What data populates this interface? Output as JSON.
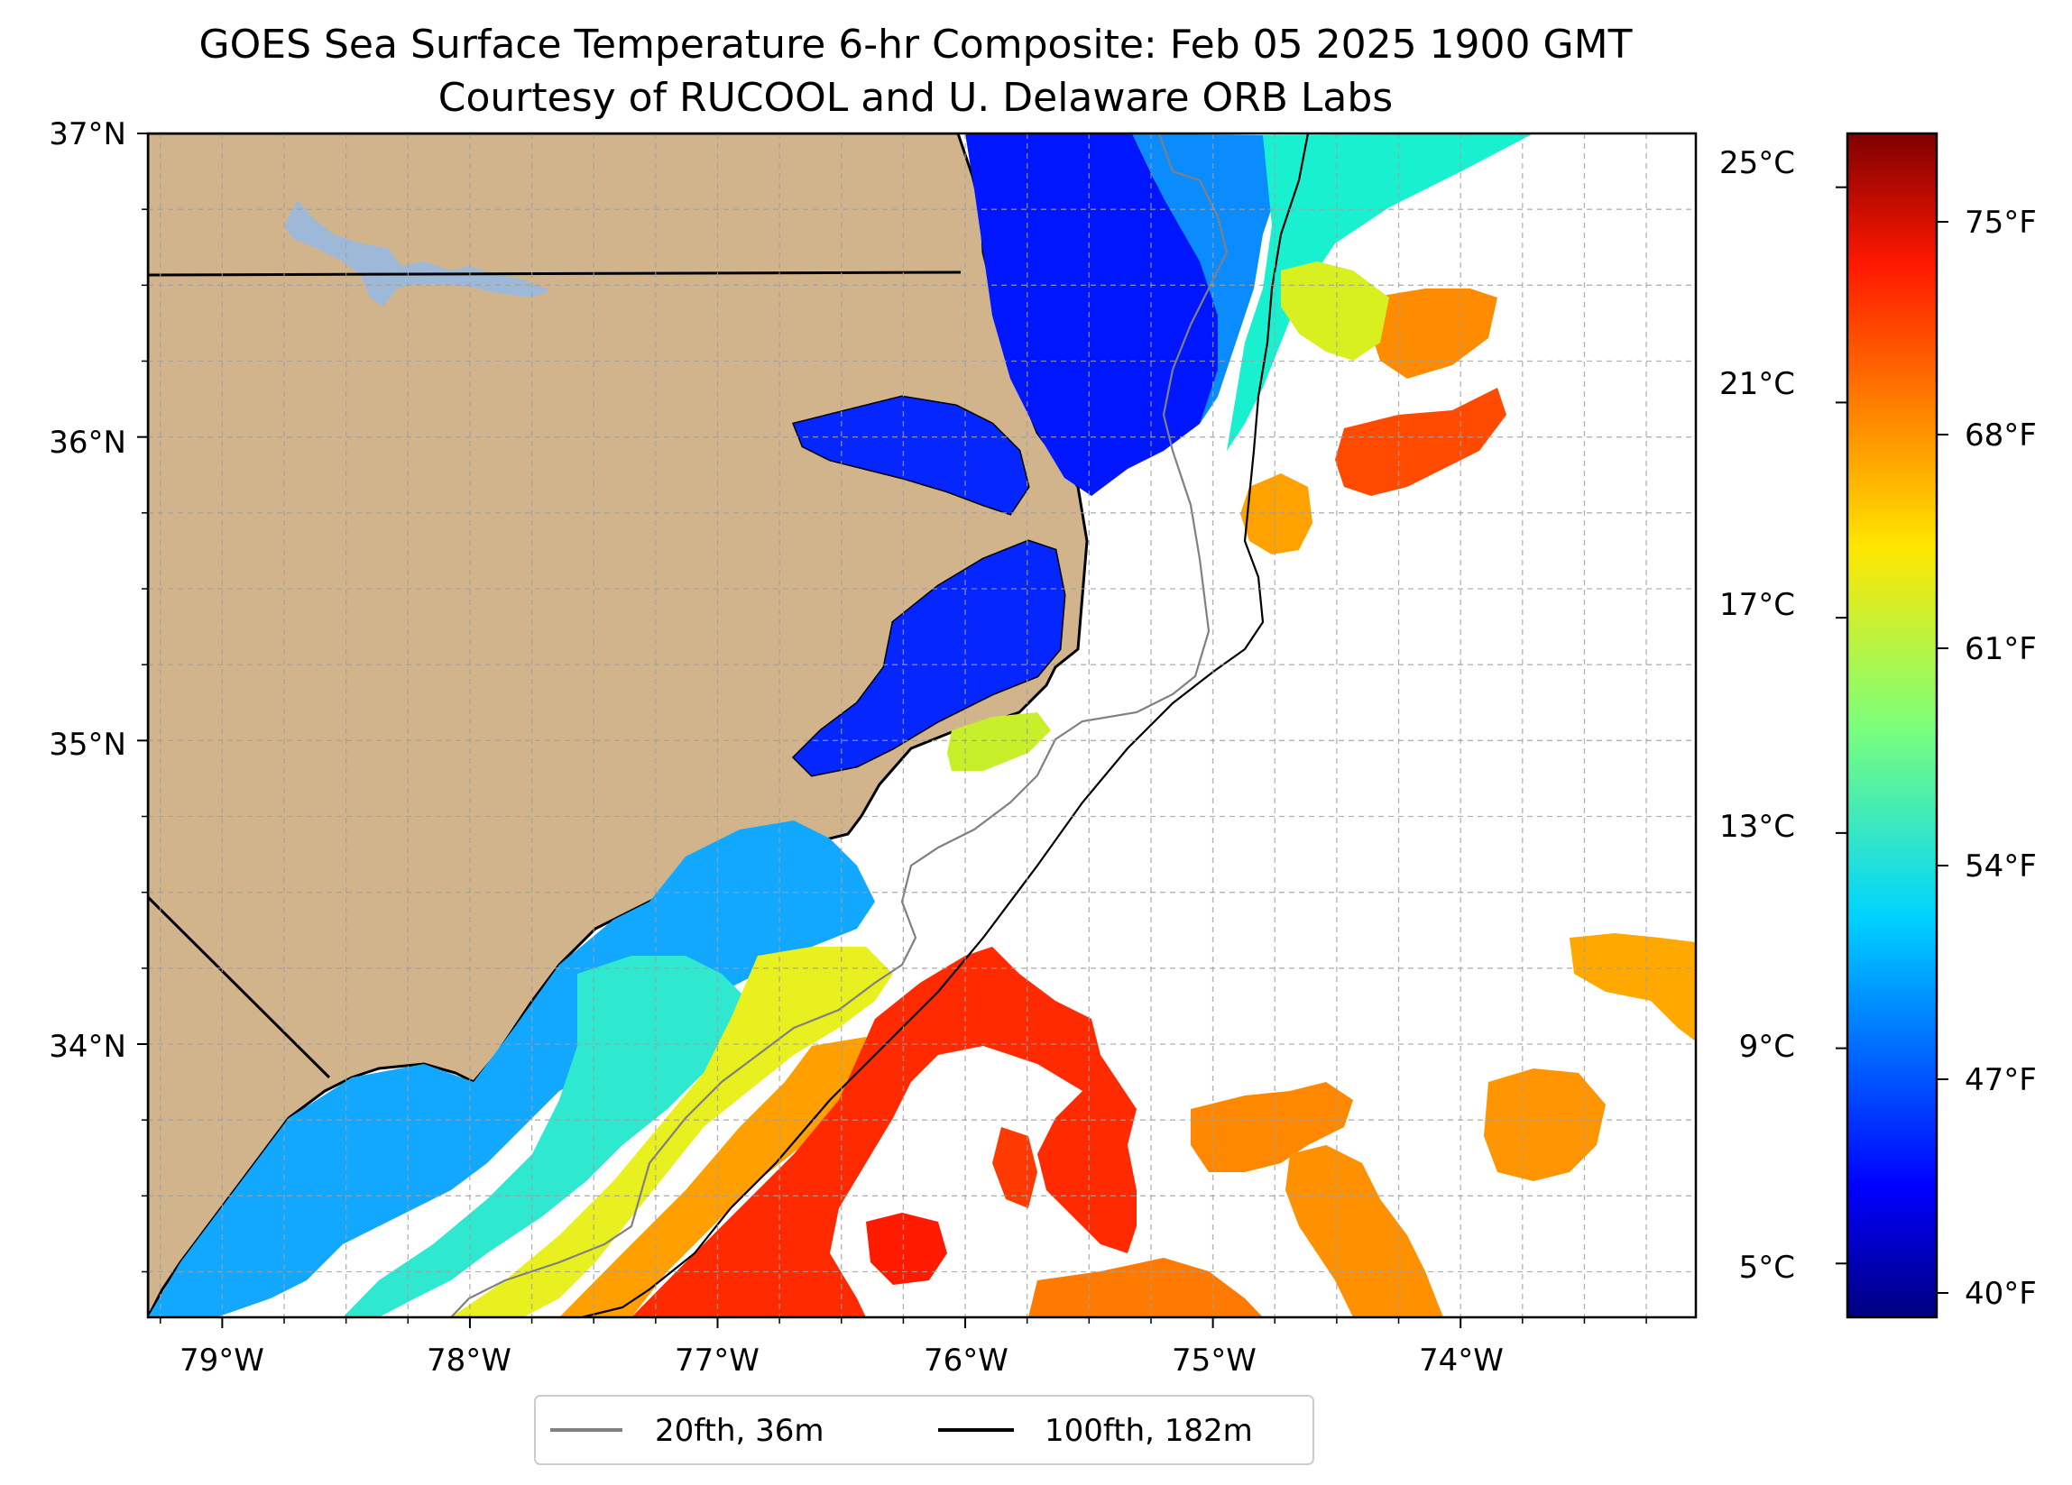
{
  "figure": {
    "title_line1": "GOES Sea Surface Temperature 6-hr Composite: Feb 05 2025 1900 GMT",
    "title_line2": "Courtesy of RUCOOL and U. Delaware ORB Labs"
  },
  "map": {
    "lon_range": [
      -79.3,
      -73.05
    ],
    "lat_range": [
      33.1,
      37.0
    ],
    "lon_ticks": [
      "79°W",
      "78°W",
      "77°W",
      "76°W",
      "75°W",
      "74°W"
    ],
    "lat_ticks": [
      "37°N",
      "36°N",
      "35°N",
      "34°N"
    ],
    "land_color": "#d2b48c",
    "gridlines": true,
    "gridline_spacing_deg": 0.25,
    "projection": "plate-carree"
  },
  "legend": {
    "placement": "bottom-center",
    "items": [
      {
        "label": "20fth, 36m",
        "color": "#808080"
      },
      {
        "label": "100fth, 182m",
        "color": "#000000"
      }
    ]
  },
  "colorbar": {
    "colormap": "jet",
    "range_celsius": [
      4.0,
      26.0
    ],
    "celsius_ticks": [
      "25°C",
      "21°C",
      "17°C",
      "13°C",
      "9°C",
      "5°C"
    ],
    "fahrenheit_ticks": [
      "75°F",
      "68°F",
      "61°F",
      "54°F",
      "47°F",
      "40°F"
    ]
  }
}
